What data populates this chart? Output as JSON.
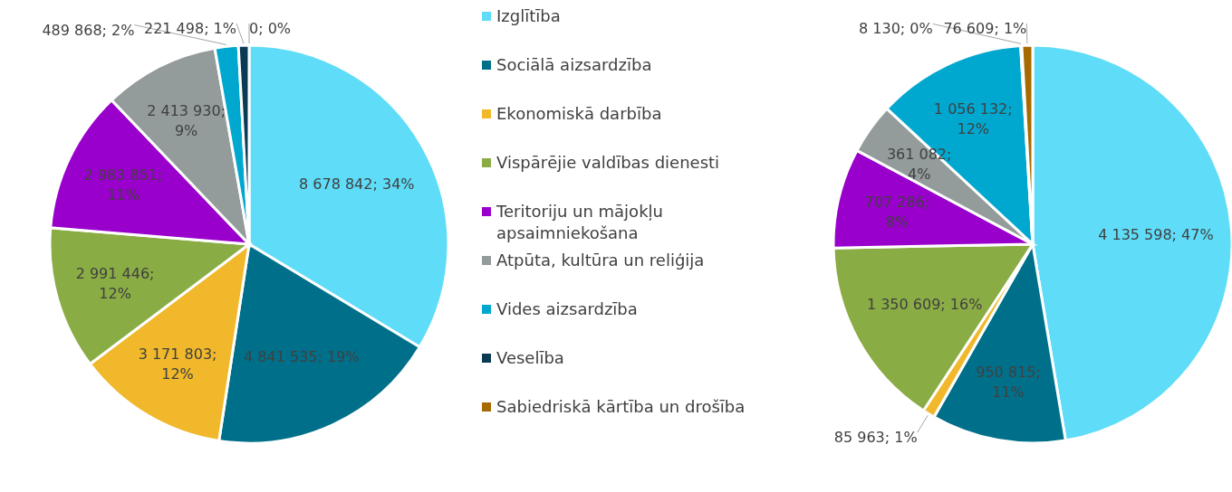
{
  "chart_data": {
    "type": "pie",
    "categories": [
      "Izglītība",
      "Sociālā aizsardzība",
      "Ekonomiskā darbība",
      "Vispārējie valdības dienesti",
      "Teritoriju un mājokļu apsaimniekošana",
      "Atpūta, kultūra un reliģija",
      "Vides aizsardzība",
      "Veselība",
      "Sabiedriskā kārtība un drošība"
    ],
    "colors": [
      "#5fdcf8",
      "#00708a",
      "#f0b82a",
      "#8aac44",
      "#9900cc",
      "#939c9b",
      "#00a8d0",
      "#0b3a54",
      "#a66a00"
    ],
    "legend": "right",
    "series": [
      {
        "values": [
          8678842,
          4841535,
          3171803,
          2991446,
          2983851,
          2413930,
          489868,
          221498,
          0
        ],
        "value_labels": [
          "8 678 842; 34%",
          "4 841 535; 19%",
          "3 171 803; 12%",
          "2 991 446; 12%",
          "2 983 851; 11%",
          "2 413 930; 9%",
          "489 868; 2%",
          "221 498; 1%",
          "0; 0%"
        ]
      },
      {
        "values": [
          4135598,
          950815,
          85963,
          1350609,
          707286,
          361082,
          1056132,
          8130,
          76609
        ],
        "value_labels": [
          "4 135 598; 47%",
          "950 815; 11%",
          "85 963; 1%",
          "1 350 609; 16%",
          "707 286; 8%",
          "361 082; 4%",
          "1 056 132; 12%",
          "8 130; 0%",
          "76 609; 1%"
        ]
      }
    ]
  }
}
